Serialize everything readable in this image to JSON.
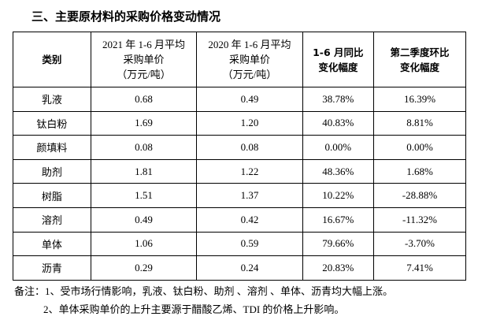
{
  "title": "三、主要原材料的采购价格变动情况",
  "table": {
    "header": [
      [
        "类别"
      ],
      [
        "2021 年 1-6 月平均",
        "采购单价",
        "（万元/吨）"
      ],
      [
        "2020 年 1-6 月平均",
        "采购单价",
        "（万元/吨）"
      ],
      [
        "1-6 月同比",
        "变化幅度"
      ],
      [
        "第二季度环比",
        "变化幅度"
      ]
    ],
    "rows": [
      [
        "乳液",
        "0.68",
        "0.49",
        "38.78%",
        "16.39%"
      ],
      [
        "钛白粉",
        "1.69",
        "1.20",
        "40.83%",
        "8.81%"
      ],
      [
        "颜填料",
        "0.08",
        "0.08",
        "0.00%",
        "0.00%"
      ],
      [
        "助剂",
        "1.81",
        "1.22",
        "48.36%",
        "1.68%"
      ],
      [
        "树脂",
        "1.51",
        "1.37",
        "10.22%",
        "-28.88%"
      ],
      [
        "溶剂",
        "0.49",
        "0.42",
        "16.67%",
        "-11.32%"
      ],
      [
        "单体",
        "1.06",
        "0.59",
        "79.66%",
        "-3.70%"
      ],
      [
        "沥青",
        "0.29",
        "0.24",
        "20.83%",
        "7.41%"
      ]
    ]
  },
  "notes": [
    "备注：1、受市场行情影响，乳液、钛白粉、助剂 、溶剂 、单体、沥青均大幅上涨。",
    "2、单体采购单价的上升主要源于醋酸乙烯、TDI 的价格上升影响。"
  ]
}
